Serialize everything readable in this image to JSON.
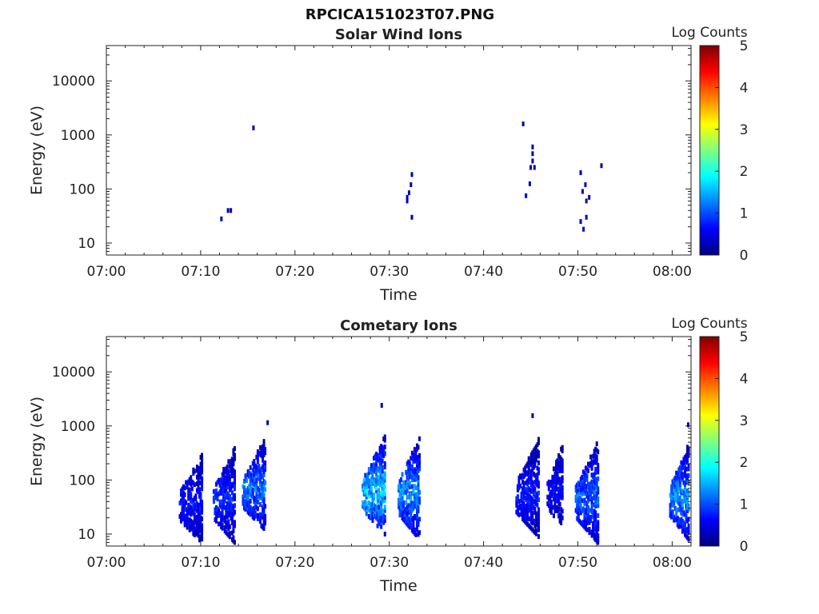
{
  "figure": {
    "title": "RPCICA151023T07.PNG"
  },
  "colorbar": {
    "label": "Log Counts",
    "ticks": [
      "0",
      "1",
      "2",
      "3",
      "4",
      "5"
    ],
    "colormap": [
      "#00007f",
      "#0000ff",
      "#007fff",
      "#00ffff",
      "#7fff7f",
      "#ffff00",
      "#ff7f00",
      "#ff0000",
      "#7f0000"
    ]
  },
  "chart_data": [
    {
      "type": "heatmap",
      "title": "Solar Wind Ions",
      "xlabel": "Time",
      "ylabel": "Energy (eV)",
      "x_ticks": [
        "07:00",
        "07:10",
        "07:20",
        "07:30",
        "07:40",
        "07:50",
        "08:00"
      ],
      "y_ticks": [
        "10",
        "100",
        "1000",
        "10000"
      ],
      "yscale": "log",
      "ylim": [
        6,
        45000
      ],
      "xlim_minutes_after_0700": [
        0,
        62
      ],
      "clim": [
        0,
        5
      ],
      "points": [
        {
          "t": 12.2,
          "e": 28,
          "c": 0.2
        },
        {
          "t": 12.9,
          "e": 40,
          "c": 0.3
        },
        {
          "t": 13.2,
          "e": 40,
          "c": 0.3
        },
        {
          "t": 15.6,
          "e": 1350,
          "c": 0.2
        },
        {
          "t": 31.9,
          "e": 60,
          "c": 0.3
        },
        {
          "t": 31.9,
          "e": 70,
          "c": 0.3
        },
        {
          "t": 32.1,
          "e": 85,
          "c": 0.3
        },
        {
          "t": 32.3,
          "e": 120,
          "c": 0.2
        },
        {
          "t": 32.4,
          "e": 185,
          "c": 0.2
        },
        {
          "t": 32.4,
          "e": 30,
          "c": 0.2
        },
        {
          "t": 44.2,
          "e": 1600,
          "c": 0.2
        },
        {
          "t": 44.5,
          "e": 75,
          "c": 0.3
        },
        {
          "t": 44.9,
          "e": 125,
          "c": 0.2
        },
        {
          "t": 45.0,
          "e": 250,
          "c": 0.2
        },
        {
          "t": 45.2,
          "e": 330,
          "c": 0.2
        },
        {
          "t": 45.2,
          "e": 450,
          "c": 0.2
        },
        {
          "t": 45.2,
          "e": 600,
          "c": 0.2
        },
        {
          "t": 45.4,
          "e": 250,
          "c": 0.2
        },
        {
          "t": 50.3,
          "e": 200,
          "c": 0.2
        },
        {
          "t": 50.5,
          "e": 90,
          "c": 0.2
        },
        {
          "t": 50.3,
          "e": 25,
          "c": 0.3
        },
        {
          "t": 50.6,
          "e": 18,
          "c": 0.4
        },
        {
          "t": 50.8,
          "e": 120,
          "c": 0.3
        },
        {
          "t": 50.9,
          "e": 60,
          "c": 0.3
        },
        {
          "t": 50.9,
          "e": 30,
          "c": 0.3
        },
        {
          "t": 51.2,
          "e": 70,
          "c": 0.2
        },
        {
          "t": 52.5,
          "e": 270,
          "c": 0.2
        }
      ]
    },
    {
      "type": "heatmap",
      "title": "Cometary Ions",
      "xlabel": "Time",
      "ylabel": "Energy (eV)",
      "x_ticks": [
        "07:00",
        "07:10",
        "07:20",
        "07:30",
        "07:40",
        "07:50",
        "08:00"
      ],
      "y_ticks": [
        "10",
        "100",
        "1000",
        "10000"
      ],
      "yscale": "log",
      "ylim": [
        6,
        45000
      ],
      "xlim_minutes_after_0700": [
        0,
        62
      ],
      "clim": [
        0,
        5
      ],
      "clusters": [
        {
          "t0": 7.8,
          "t1": 10.2,
          "emin": 7,
          "emax": 330,
          "peak": 0.8
        },
        {
          "t0": 11.4,
          "t1": 13.6,
          "emin": 7,
          "emax": 430,
          "peak": 0.9
        },
        {
          "t0": 14.5,
          "t1": 16.8,
          "emin": 12,
          "emax": 600,
          "peak": 1.3
        },
        {
          "t0": 27.2,
          "t1": 29.6,
          "emin": 10,
          "emax": 650,
          "peak": 1.8
        },
        {
          "t0": 31.0,
          "t1": 33.2,
          "emin": 8,
          "emax": 650,
          "peak": 1.4
        },
        {
          "t0": 43.5,
          "t1": 45.9,
          "emin": 9,
          "emax": 580,
          "peak": 0.8
        },
        {
          "t0": 46.8,
          "t1": 48.3,
          "emin": 13,
          "emax": 450,
          "peak": 0.7
        },
        {
          "t0": 49.8,
          "t1": 52.1,
          "emin": 7,
          "emax": 520,
          "peak": 1.2
        },
        {
          "t0": 59.8,
          "t1": 61.8,
          "emin": 8,
          "emax": 470,
          "peak": 1.5
        }
      ],
      "isolated_points": [
        {
          "t": 17.1,
          "e": 1150,
          "c": 0.2
        },
        {
          "t": 29.2,
          "e": 2400,
          "c": 0.2
        },
        {
          "t": 45.2,
          "e": 1550,
          "c": 0.2
        },
        {
          "t": 61.7,
          "e": 1050,
          "c": 0.2
        }
      ]
    }
  ]
}
